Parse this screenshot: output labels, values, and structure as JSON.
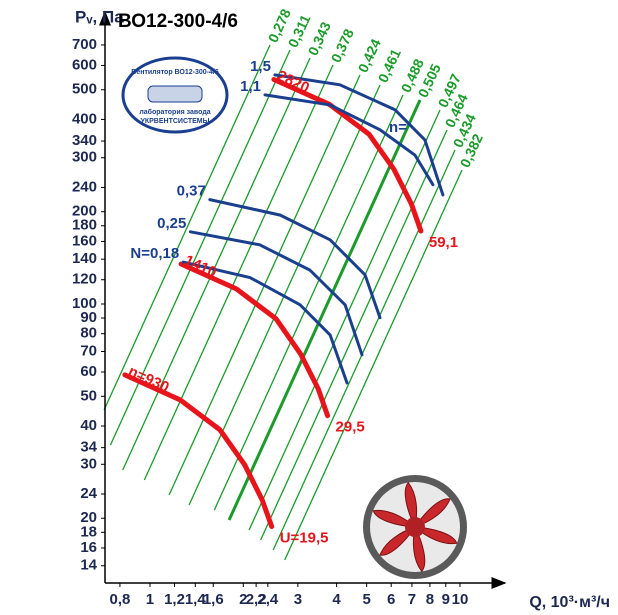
{
  "chart_data": {
    "type": "line",
    "title": "ВО12-300-4/6",
    "x_label": "Q, 10³·м³/ч",
    "y_label": "Pᵥ, Па",
    "log_x": true,
    "log_y": true,
    "xlim": [
      0.716,
      12.5
    ],
    "ylim": [
      12.3,
      783
    ],
    "xticks": [
      {
        "value": 0.8,
        "label": "0,8"
      },
      1,
      {
        "value": 1.2,
        "label": "1,2"
      },
      {
        "value": 1.4,
        "label": "1,4"
      },
      {
        "value": 1.6,
        "label": "1,6"
      },
      2,
      {
        "value": 2.2,
        "label": "2,2"
      },
      {
        "value": 2.4,
        "label": "2,4"
      },
      3,
      4,
      5,
      6,
      7,
      8,
      9,
      10
    ],
    "yticks": [
      14,
      16,
      18,
      20,
      24,
      30,
      34,
      40,
      50,
      60,
      70,
      80,
      90,
      100,
      120,
      140,
      160,
      180,
      200,
      240,
      300,
      340,
      400,
      500,
      600,
      700
    ],
    "series": [
      {
        "name": "n=930",
        "end_label": "U=19,5",
        "color": "#e8141b",
        "kind": "speed",
        "x": [
          0.83,
          1.25,
          1.68,
          2.02,
          2.3,
          2.47
        ],
        "values": [
          58.7,
          48.7,
          38.9,
          29.9,
          23.0,
          18.8
        ]
      },
      {
        "name": "1410",
        "end_label": "29,5",
        "color": "#e8141b",
        "kind": "speed",
        "x": [
          1.26,
          1.9,
          2.55,
          3.06,
          3.49,
          3.74
        ],
        "values": [
          135,
          112,
          89.5,
          68.8,
          52.9,
          43.2
        ]
      },
      {
        "name": "2820",
        "end_label": "59,1",
        "color": "#e8141b",
        "kind": "speed",
        "x": [
          2.51,
          3.79,
          5.09,
          6.12,
          6.97,
          7.48
        ],
        "values": [
          540,
          448,
          358,
          275,
          212,
          173
        ]
      },
      {
        "name": "N=0,18",
        "color": "#1b3f8f",
        "kind": "power",
        "x": [
          1.28,
          2.1,
          3.05,
          3.81,
          4.32
        ],
        "values": [
          137,
          122,
          99.4,
          79.3,
          55.3
        ]
      },
      {
        "name": "0,25",
        "color": "#1b3f8f",
        "kind": "power",
        "x": [
          1.35,
          2.26,
          3.28,
          4.26,
          4.83
        ],
        "values": [
          172,
          156,
          129,
          99.4,
          68.3
        ]
      },
      {
        "name": "0,37",
        "color": "#1b3f8f",
        "kind": "power",
        "x": [
          1.56,
          2.63,
          3.81,
          4.94,
          5.52
        ],
        "values": [
          219,
          195,
          162,
          124.5,
          90.2
        ]
      },
      {
        "name": "1,1",
        "color": "#1b3f8f",
        "kind": "power",
        "x": [
          2.35,
          3.81,
          5.52,
          7.16,
          8.18
        ],
        "values": [
          481,
          446,
          370,
          306,
          245
        ]
      },
      {
        "name": "1,5",
        "color": "#1b3f8f",
        "kind": "power",
        "x": [
          2.53,
          4.1,
          6.17,
          7.71,
          8.81
        ],
        "values": [
          559,
          519,
          430,
          343,
          227
        ]
      }
    ],
    "efficiency_labels": [
      "0,278",
      "0,311",
      "0,343",
      "0,378",
      "0,424",
      "0,461",
      "0,488",
      "0,505",
      "0,497",
      "0,464",
      "0,434",
      "0,382"
    ],
    "efficiency_color": "#1a9b2a",
    "annotations": [
      "n="
    ],
    "logo": [
      "Вентилятор ВО12-300-4/6",
      "лаборатория завода",
      "УКРВЕНТСИСТЕМЫ"
    ]
  }
}
